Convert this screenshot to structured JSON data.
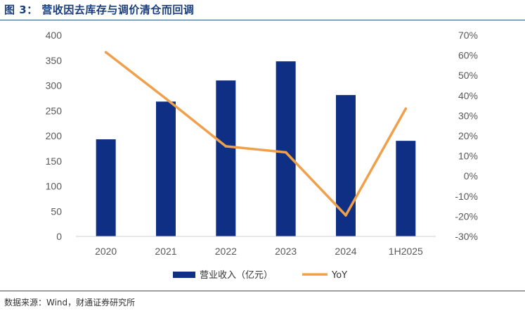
{
  "header": {
    "title": "图 3： 营收因去库存与调价清仓而回调"
  },
  "footer": {
    "source": "数据来源：Wind，财通证券研究所"
  },
  "colors": {
    "bar": "#0f2f84",
    "line": "#f0a04b",
    "rule": "#2e4f8f"
  },
  "chart_data": {
    "type": "bar",
    "categories": [
      "2020",
      "2021",
      "2022",
      "2023",
      "2024",
      "1H2025"
    ],
    "series": [
      {
        "name": "营业收入（亿元）",
        "type": "bar",
        "axis": "left",
        "values": [
          193,
          268,
          310,
          348,
          281,
          190
        ]
      },
      {
        "name": "YoY",
        "type": "line",
        "axis": "right",
        "values": [
          61.5,
          38.5,
          14.8,
          11.8,
          -19.5,
          33.5
        ]
      }
    ],
    "y_left": {
      "min": 0,
      "max": 400,
      "step": 50,
      "ticks": [
        "0",
        "50",
        "100",
        "150",
        "200",
        "250",
        "300",
        "350",
        "400"
      ]
    },
    "y_right": {
      "min": -30,
      "max": 70,
      "step": 10,
      "ticks": [
        "-30%",
        "-20%",
        "-10%",
        "0%",
        "10%",
        "20%",
        "30%",
        "40%",
        "50%",
        "60%",
        "70%"
      ]
    },
    "grid": false,
    "legend": "bottom"
  }
}
